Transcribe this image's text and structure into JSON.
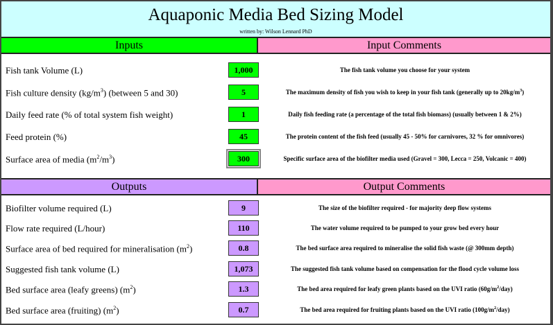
{
  "title": "Aquaponic Media Bed Sizing Model",
  "author": "written by: Wilson Lennard PhD",
  "inputs_header": "Inputs",
  "input_comments_header": "Input Comments",
  "outputs_header": "Outputs",
  "output_comments_header": "Output Comments",
  "colors": {
    "title_bg": "#ccffff",
    "inputs": "#00ff00",
    "comments": "#ff99cc",
    "outputs": "#cc99ff"
  },
  "inputs": [
    {
      "label": "Fish tank Volume (L)",
      "value": "1,000",
      "comment": "The fish tank volume you choose for your system"
    },
    {
      "label": "Fish culture density (kg/m³) (between 5 and 30)",
      "value": "5",
      "comment": "The maximum density of fish you wish to keep in your fish tank (generally up to 20kg/m³)"
    },
    {
      "label": "Daily feed rate (% of total system fish weight)",
      "value": "1",
      "comment": "Daily fish feeding rate (a percentage of the total fish biomass) (usually between 1 & 2%)"
    },
    {
      "label": "Feed protein (%)",
      "value": "45",
      "comment": "The protein content of the fish feed (usually 45 - 50% for carnivores, 32 % for omnivores)"
    },
    {
      "label": "Surface area of media (m²/m³)",
      "value": "300",
      "comment": "Specific surface area of the biofilter media used (Gravel = 300, Lecca = 250, Volcanic = 400)"
    }
  ],
  "outputs": [
    {
      "label": "Biofilter volume required (L)",
      "value": "9",
      "comment": "The size of the biofilter required - for majority deep flow systems"
    },
    {
      "label": "Flow rate required (L/hour)",
      "value": "110",
      "comment": "The water volume required to be pumped to your grow bed every hour"
    },
    {
      "label": "Surface area of bed required for mineralisation (m²)",
      "value": "0.8",
      "comment": "The bed surface area required to mineralise the solid fish waste (@ 300mm depth)"
    },
    {
      "label": "Suggested fish tank volume (L)",
      "value": "1,073",
      "comment": "The suggested fish tank volume based on compensation for the flood cycle volume loss"
    },
    {
      "label": "Bed surface area (leafy greens) (m²)",
      "value": "1.3",
      "comment": "The bed area required for leafy green plants based on the UVI ratio (60g/m²/day)"
    },
    {
      "label": "Bed surface area (fruiting) (m²)",
      "value": "0.7",
      "comment": "The bed area required for fruiting plants based on the UVI ratio (100g/m²/day)"
    }
  ]
}
